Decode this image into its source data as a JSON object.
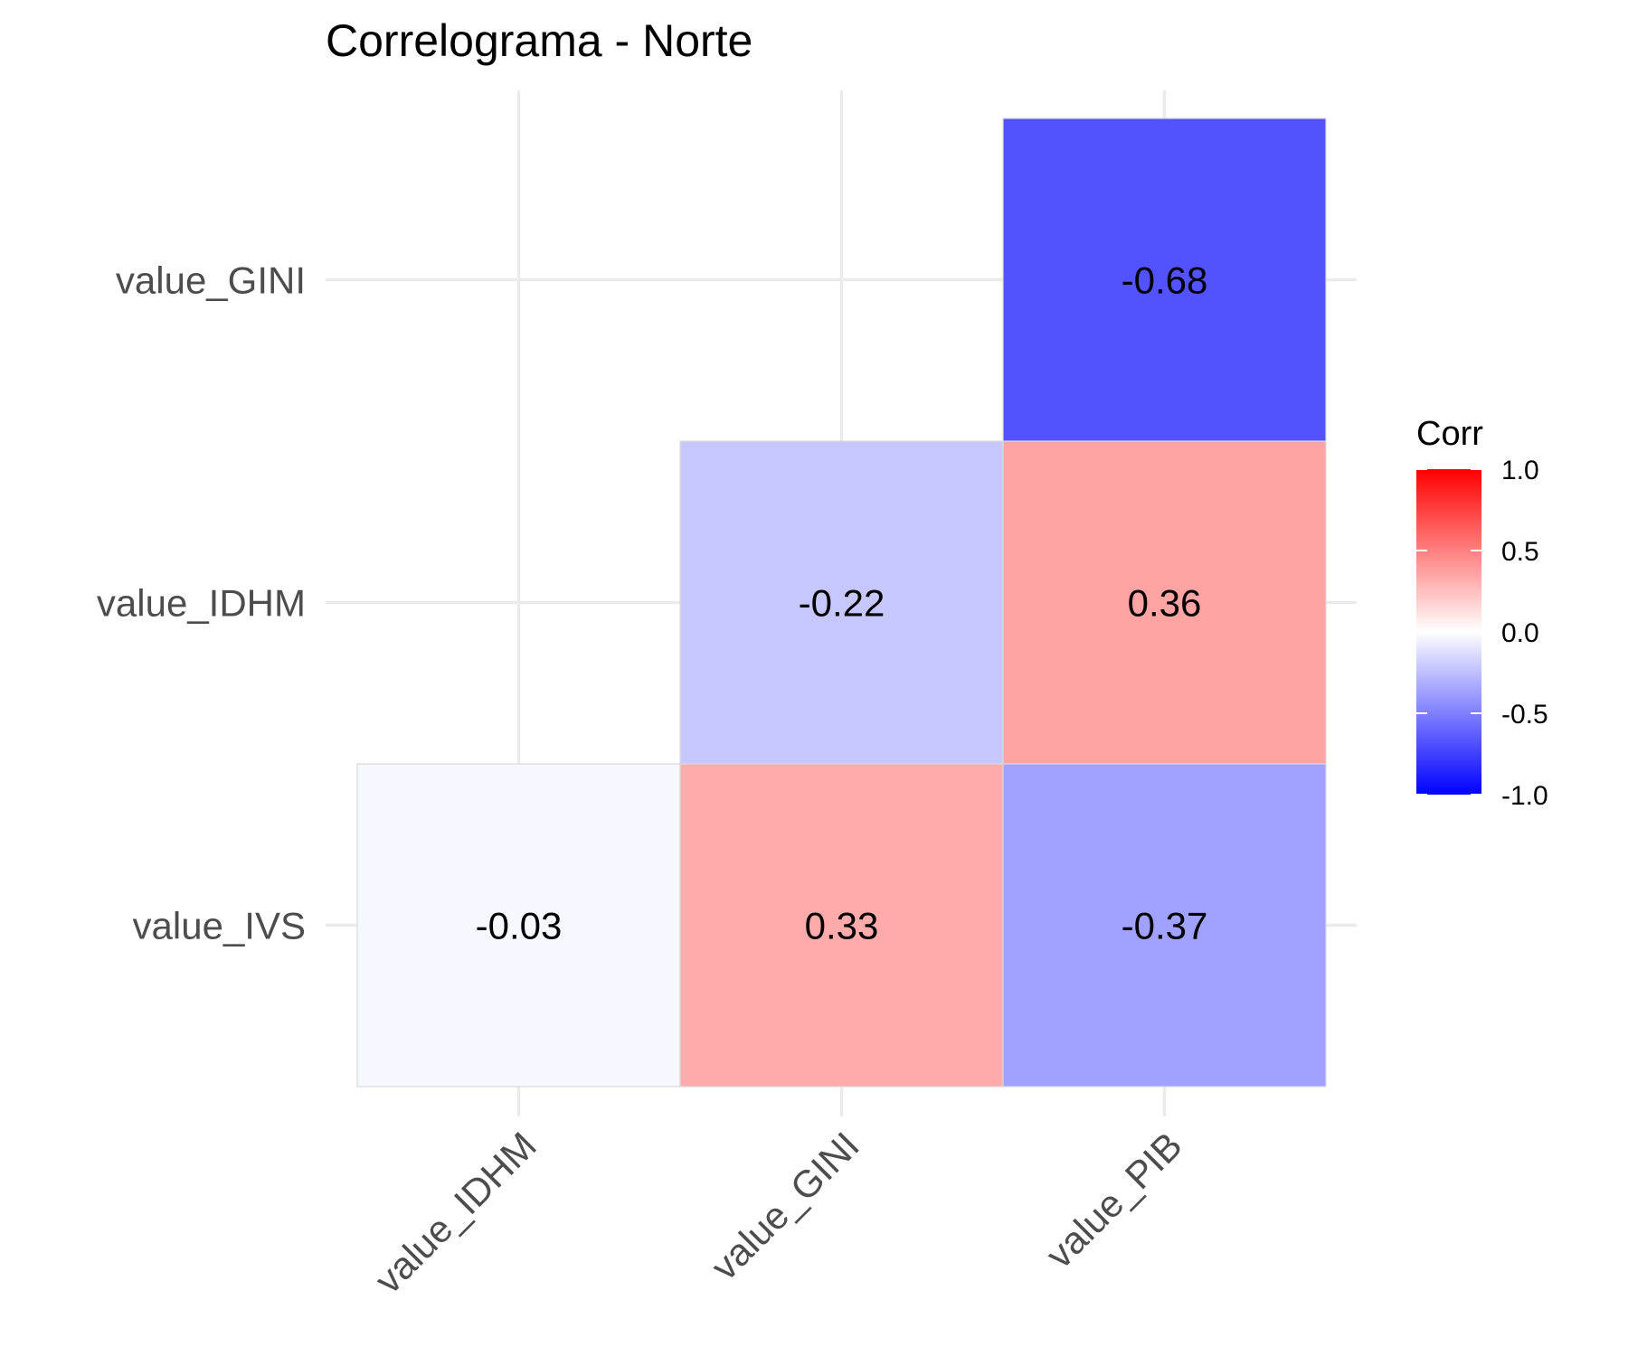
{
  "chart_data": {
    "type": "heatmap",
    "title": "Correlograma - Norte",
    "x_categories": [
      "value_IDHM",
      "value_GINI",
      "value_PIB"
    ],
    "y_categories": [
      "value_IVS",
      "value_IDHM",
      "value_GINI"
    ],
    "cells": [
      {
        "x": "value_IDHM",
        "y": "value_IVS",
        "value": -0.03,
        "label": "-0.03"
      },
      {
        "x": "value_GINI",
        "y": "value_IVS",
        "value": 0.33,
        "label": "0.33"
      },
      {
        "x": "value_PIB",
        "y": "value_IVS",
        "value": -0.37,
        "label": "-0.37"
      },
      {
        "x": "value_GINI",
        "y": "value_IDHM",
        "value": -0.22,
        "label": "-0.22"
      },
      {
        "x": "value_PIB",
        "y": "value_IDHM",
        "value": 0.36,
        "label": "0.36"
      },
      {
        "x": "value_PIB",
        "y": "value_GINI",
        "value": -0.68,
        "label": "-0.68"
      }
    ],
    "legend": {
      "title": "Corr",
      "placement": "right",
      "range": [
        -1,
        1
      ],
      "ticks": [
        {
          "value": 1.0,
          "label": "1.0"
        },
        {
          "value": 0.5,
          "label": "0.5"
        },
        {
          "value": 0.0,
          "label": "0.0"
        },
        {
          "value": -0.5,
          "label": "-0.5"
        },
        {
          "value": -1.0,
          "label": "-1.0"
        }
      ],
      "colors": {
        "low": "#0000ff",
        "mid": "#ffffff",
        "high": "#ff0000"
      }
    },
    "grid": true
  }
}
